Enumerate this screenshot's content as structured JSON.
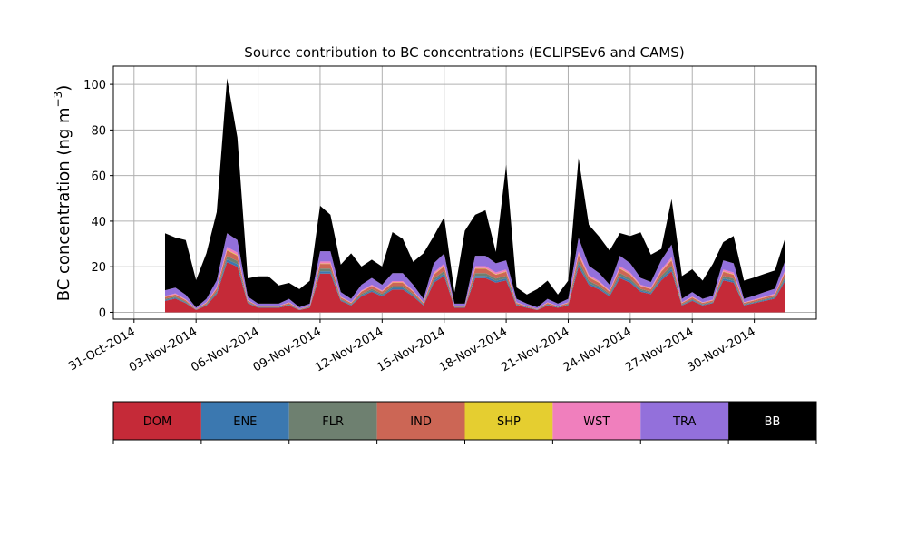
{
  "chart_data": {
    "type": "area",
    "stacked": true,
    "title": "Source contribution to BC concentrations (ECLIPSEv6 and CAMS)",
    "ylabel": "BC concentration (ng m",
    "ylabel_sup": "−3",
    "ylabel_close": ")",
    "xlim": [
      "2014-10-30",
      "2014-12-03"
    ],
    "ylim": [
      -3,
      108
    ],
    "grid": true,
    "x_ticks": [
      {
        "date": "2014-10-31",
        "label": "31-Oct-2014"
      },
      {
        "date": "2014-11-03",
        "label": "03-Nov-2014"
      },
      {
        "date": "2014-11-06",
        "label": "06-Nov-2014"
      },
      {
        "date": "2014-11-09",
        "label": "09-Nov-2014"
      },
      {
        "date": "2014-11-12",
        "label": "12-Nov-2014"
      },
      {
        "date": "2014-11-15",
        "label": "15-Nov-2014"
      },
      {
        "date": "2014-11-18",
        "label": "18-Nov-2014"
      },
      {
        "date": "2014-11-21",
        "label": "21-Nov-2014"
      },
      {
        "date": "2014-11-24",
        "label": "24-Nov-2014"
      },
      {
        "date": "2014-11-27",
        "label": "27-Nov-2014"
      },
      {
        "date": "2014-11-30",
        "label": "30-Nov-2014"
      }
    ],
    "y_ticks": [
      0,
      20,
      40,
      60,
      80,
      100
    ],
    "x": [
      "2014-11-01T12:00",
      "2014-11-02T00:00",
      "2014-11-02T12:00",
      "2014-11-03T00:00",
      "2014-11-03T12:00",
      "2014-11-04T00:00",
      "2014-11-04T12:00",
      "2014-11-05T00:00",
      "2014-11-05T12:00",
      "2014-11-06T00:00",
      "2014-11-06T12:00",
      "2014-11-07T00:00",
      "2014-11-07T12:00",
      "2014-11-08T00:00",
      "2014-11-08T12:00",
      "2014-11-09T00:00",
      "2014-11-09T12:00",
      "2014-11-10T00:00",
      "2014-11-10T12:00",
      "2014-11-11T00:00",
      "2014-11-11T12:00",
      "2014-11-12T00:00",
      "2014-11-12T12:00",
      "2014-11-13T00:00",
      "2014-11-13T12:00",
      "2014-11-14T00:00",
      "2014-11-14T12:00",
      "2014-11-15T00:00",
      "2014-11-15T12:00",
      "2014-11-16T00:00",
      "2014-11-16T12:00",
      "2014-11-17T00:00",
      "2014-11-17T12:00",
      "2014-11-18T00:00",
      "2014-11-18T12:00",
      "2014-11-19T00:00",
      "2014-11-19T12:00",
      "2014-11-20T00:00",
      "2014-11-20T12:00",
      "2014-11-21T00:00",
      "2014-11-21T12:00",
      "2014-11-22T00:00",
      "2014-11-22T12:00",
      "2014-11-23T00:00",
      "2014-11-23T12:00",
      "2014-11-24T00:00",
      "2014-11-24T12:00",
      "2014-11-25T00:00",
      "2014-11-25T12:00",
      "2014-11-26T00:00",
      "2014-11-26T12:00",
      "2014-11-27T00:00",
      "2014-11-27T12:00",
      "2014-11-28T00:00",
      "2014-11-28T12:00",
      "2014-11-29T00:00",
      "2014-11-29T12:00",
      "2014-11-30T00:00",
      "2014-11-30T12:00",
      "2014-12-01T00:00",
      "2014-12-01T12:00"
    ],
    "series": [
      {
        "name": "DOM",
        "color": "#c52a38",
        "values": [
          5,
          6,
          4,
          1,
          3,
          8,
          22,
          20,
          4,
          2,
          2,
          2,
          3,
          1,
          2,
          17,
          17,
          5,
          3,
          7,
          9,
          7,
          10,
          10,
          7,
          3,
          13,
          16,
          2,
          2,
          15,
          15,
          13,
          14,
          3,
          2,
          1,
          3,
          2,
          3,
          20,
          12,
          10,
          7,
          15,
          13,
          9,
          8,
          14,
          18,
          3,
          5,
          3,
          4,
          14,
          13,
          3,
          4,
          5,
          6,
          14
        ]
      },
      {
        "name": "ENE",
        "color": "#3b78b0",
        "values": [
          0.4,
          0.4,
          0.3,
          0.1,
          0.3,
          0.6,
          1.2,
          1.1,
          0.3,
          0.2,
          0.2,
          0.2,
          0.3,
          0.1,
          0.2,
          1,
          1,
          0.4,
          0.3,
          0.5,
          0.6,
          0.5,
          0.7,
          0.7,
          0.5,
          0.3,
          0.8,
          1,
          0.2,
          0.2,
          1,
          1,
          0.8,
          0.9,
          0.3,
          0.2,
          0.1,
          0.3,
          0.2,
          0.3,
          1.2,
          0.8,
          0.7,
          0.5,
          1,
          0.8,
          0.6,
          0.5,
          0.9,
          1.1,
          0.3,
          0.4,
          0.3,
          0.3,
          0.9,
          0.8,
          0.3,
          0.3,
          0.4,
          0.4,
          0.9
        ]
      },
      {
        "name": "FLR",
        "color": "#6e8070",
        "values": [
          0.5,
          0.5,
          0.4,
          0.1,
          0.3,
          0.7,
          1.5,
          1.4,
          0.3,
          0.2,
          0.2,
          0.2,
          0.3,
          0.1,
          0.2,
          1.2,
          1.2,
          0.4,
          0.3,
          0.6,
          0.7,
          0.6,
          0.8,
          0.8,
          0.6,
          0.3,
          1,
          1.2,
          0.2,
          0.2,
          1.2,
          1.2,
          1,
          1.1,
          0.3,
          0.2,
          0.1,
          0.3,
          0.2,
          0.3,
          1.5,
          1,
          0.8,
          0.6,
          1.2,
          1,
          0.7,
          0.6,
          1.1,
          1.4,
          0.3,
          0.4,
          0.3,
          0.3,
          1.1,
          1,
          0.3,
          0.3,
          0.4,
          0.5,
          1.1
        ]
      },
      {
        "name": "IND",
        "color": "#cc6655",
        "values": [
          0.8,
          0.9,
          0.6,
          0.2,
          0.5,
          1.1,
          2.5,
          2.3,
          0.5,
          0.3,
          0.3,
          0.3,
          0.5,
          0.2,
          0.3,
          2,
          2,
          0.7,
          0.5,
          1,
          1.2,
          1,
          1.4,
          1.4,
          1,
          0.5,
          1.7,
          2,
          0.3,
          0.3,
          2,
          2,
          1.7,
          1.8,
          0.5,
          0.3,
          0.2,
          0.5,
          0.3,
          0.5,
          2.5,
          1.6,
          1.4,
          1,
          2,
          1.7,
          1.2,
          1.1,
          1.8,
          2.3,
          0.5,
          0.7,
          0.5,
          0.6,
          1.8,
          1.7,
          0.5,
          0.6,
          0.7,
          0.8,
          1.8
        ]
      },
      {
        "name": "SHP",
        "color": "#e5ce30",
        "values": [
          0.1,
          0.1,
          0.1,
          0,
          0.1,
          0.1,
          0.3,
          0.3,
          0.1,
          0,
          0,
          0,
          0.1,
          0,
          0,
          0.2,
          0.2,
          0.1,
          0.1,
          0.1,
          0.1,
          0.1,
          0.2,
          0.2,
          0.1,
          0.1,
          0.2,
          0.2,
          0,
          0,
          0.2,
          0.2,
          0.2,
          0.2,
          0.1,
          0,
          0,
          0.1,
          0,
          0.1,
          0.3,
          0.2,
          0.2,
          0.1,
          0.2,
          0.2,
          0.1,
          0.1,
          0.2,
          0.3,
          0.1,
          0.1,
          0.1,
          0.1,
          0.2,
          0.2,
          0.1,
          0.1,
          0.1,
          0.1,
          0.2
        ]
      },
      {
        "name": "WST",
        "color": "#f07fbd",
        "values": [
          0.4,
          0.4,
          0.3,
          0.1,
          0.2,
          0.5,
          1.2,
          1.1,
          0.2,
          0.1,
          0.1,
          0.1,
          0.2,
          0.1,
          0.1,
          0.9,
          0.9,
          0.3,
          0.2,
          0.4,
          0.5,
          0.4,
          0.6,
          0.6,
          0.4,
          0.2,
          0.8,
          0.9,
          0.1,
          0.1,
          0.9,
          0.9,
          0.8,
          0.8,
          0.2,
          0.1,
          0.1,
          0.2,
          0.1,
          0.2,
          1.2,
          0.8,
          0.6,
          0.4,
          0.9,
          0.8,
          0.5,
          0.5,
          0.8,
          1.1,
          0.2,
          0.3,
          0.2,
          0.3,
          0.8,
          0.8,
          0.2,
          0.3,
          0.3,
          0.4,
          0.8
        ]
      },
      {
        "name": "TRA",
        "color": "#9370db",
        "values": [
          2.5,
          2.5,
          2,
          0.6,
          1.5,
          3,
          6,
          5.5,
          1.5,
          1,
          1,
          1,
          1.5,
          0.7,
          1,
          4.5,
          4.5,
          2,
          1.5,
          2.5,
          3,
          2.5,
          3.5,
          3.5,
          2.5,
          1.5,
          4,
          4.5,
          1,
          1,
          4.5,
          4.5,
          4,
          4,
          1.5,
          1,
          0.7,
          1.5,
          1,
          1.5,
          6,
          4,
          3.5,
          2.5,
          4.5,
          4,
          3,
          2.5,
          4,
          5.5,
          1.5,
          2,
          1.5,
          1.7,
          4,
          4,
          1.5,
          1.7,
          2,
          2.2,
          4
        ]
      },
      {
        "name": "BB",
        "color": "#000000",
        "values": [
          25,
          22,
          24,
          12,
          20,
          30,
          68,
          45,
          8,
          12,
          12,
          8,
          7,
          8,
          10,
          20,
          16,
          12,
          20,
          8,
          8,
          8,
          18,
          15,
          10,
          20,
          12,
          16,
          5,
          32,
          18,
          20,
          5,
          42,
          5,
          4,
          8,
          8,
          4,
          8,
          35,
          18,
          16,
          15,
          10,
          12,
          20,
          12,
          5,
          20,
          10,
          10,
          8,
          14,
          8,
          12,
          8,
          8,
          8,
          8,
          10
        ]
      }
    ]
  },
  "legend": {
    "items": [
      {
        "label": "DOM",
        "color": "#c52a38",
        "text_color": "#000000"
      },
      {
        "label": "ENE",
        "color": "#3b78b0",
        "text_color": "#000000"
      },
      {
        "label": "FLR",
        "color": "#6e8070",
        "text_color": "#000000"
      },
      {
        "label": "IND",
        "color": "#cc6655",
        "text_color": "#000000"
      },
      {
        "label": "SHP",
        "color": "#e5ce30",
        "text_color": "#000000"
      },
      {
        "label": "WST",
        "color": "#f07fbd",
        "text_color": "#000000"
      },
      {
        "label": "TRA",
        "color": "#9370db",
        "text_color": "#000000"
      },
      {
        "label": "BB",
        "color": "#000000",
        "text_color": "#ffffff"
      }
    ]
  }
}
